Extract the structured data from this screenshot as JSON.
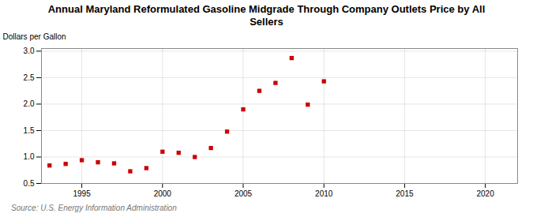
{
  "chart_data": {
    "type": "scatter",
    "title": "Annual Maryland Reformulated Gasoline Midgrade Through Company Outlets Price by All\nSellers",
    "ylabel": "Dollars per Gallon",
    "annotations": [
      "Source: U.S. Energy Information Administration"
    ],
    "x": [
      1993,
      1994,
      1995,
      1996,
      1997,
      1998,
      1999,
      2000,
      2001,
      2002,
      2003,
      2004,
      2005,
      2006,
      2007,
      2008,
      2009,
      2010
    ],
    "values": [
      0.84,
      0.87,
      0.94,
      0.9,
      0.88,
      0.73,
      0.79,
      1.1,
      1.08,
      1.0,
      1.17,
      1.48,
      1.9,
      2.25,
      2.4,
      2.87,
      1.99,
      2.43
    ],
    "color": "#cc0000",
    "marker": "square",
    "xlim": [
      1992.5,
      2022
    ],
    "ylim": [
      0.5,
      3.05
    ],
    "xticks": [
      1995,
      2000,
      2005,
      2010,
      2015,
      2020
    ],
    "yticks": [
      0.5,
      {
        "value": 1.0,
        "label": "1.0"
      },
      1.5,
      {
        "value": 2.0,
        "label": "2.0"
      },
      2.5,
      {
        "value": 3.0,
        "label": "3.0"
      }
    ],
    "grid": true
  }
}
